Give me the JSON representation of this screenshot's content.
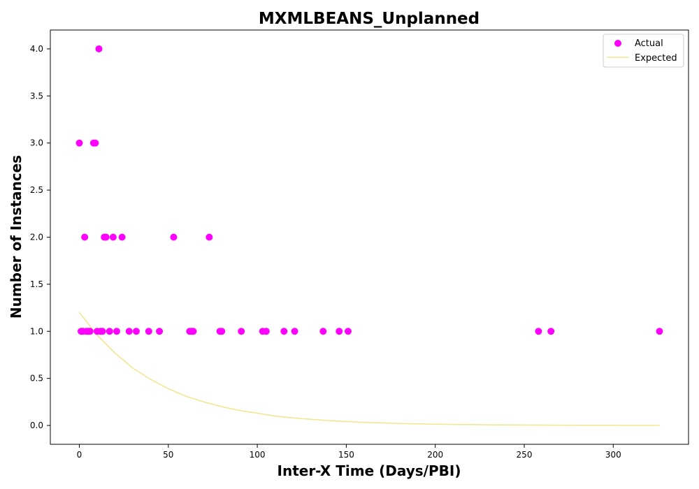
{
  "chart_data": {
    "type": "scatter",
    "title": "MXMLBEANS_Unplanned",
    "xlabel": "Inter-X Time (Days/PBI)",
    "ylabel": "Number of Instances",
    "xlim": [
      -16.3,
      342.3
    ],
    "ylim": [
      -0.2,
      4.2
    ],
    "x_ticks": [
      0,
      50,
      100,
      150,
      200,
      250,
      300
    ],
    "y_ticks": [
      0.0,
      0.5,
      1.0,
      1.5,
      2.0,
      2.5,
      3.0,
      3.5,
      4.0
    ],
    "x_tick_labels": [
      "0",
      "50",
      "100",
      "150",
      "200",
      "250",
      "300"
    ],
    "y_tick_labels": [
      "0.0",
      "0.5",
      "1.0",
      "1.5",
      "2.0",
      "2.5",
      "3.0",
      "3.5",
      "4.0"
    ],
    "grid": false,
    "legend_position": "top-right",
    "series": [
      {
        "name": "Actual",
        "kind": "scatter",
        "color": "#ff00ff",
        "points": [
          [
            0,
            3
          ],
          [
            1,
            1
          ],
          [
            2,
            1
          ],
          [
            3,
            2
          ],
          [
            4,
            1
          ],
          [
            5,
            1
          ],
          [
            6,
            1
          ],
          [
            8,
            3
          ],
          [
            9,
            3
          ],
          [
            10,
            1
          ],
          [
            11,
            4
          ],
          [
            12,
            1
          ],
          [
            13,
            1
          ],
          [
            14,
            2
          ],
          [
            15,
            2
          ],
          [
            17,
            1
          ],
          [
            19,
            2
          ],
          [
            21,
            1
          ],
          [
            24,
            2
          ],
          [
            28,
            1
          ],
          [
            32,
            1
          ],
          [
            39,
            1
          ],
          [
            45,
            1
          ],
          [
            53,
            2
          ],
          [
            62,
            1
          ],
          [
            63,
            1
          ],
          [
            64,
            1
          ],
          [
            73,
            2
          ],
          [
            79,
            1
          ],
          [
            80,
            1
          ],
          [
            91,
            1
          ],
          [
            103,
            1
          ],
          [
            105,
            1
          ],
          [
            115,
            1
          ],
          [
            121,
            1
          ],
          [
            137,
            1
          ],
          [
            146,
            1
          ],
          [
            151,
            1
          ],
          [
            258,
            1
          ],
          [
            265,
            1
          ],
          [
            326,
            1
          ]
        ]
      },
      {
        "name": "Expected",
        "kind": "line",
        "color": "#f0e68c",
        "x": [
          0,
          10,
          20,
          30,
          40,
          50,
          60,
          70,
          80,
          90,
          100,
          110,
          120,
          130,
          140,
          150,
          160,
          170,
          180,
          190,
          200,
          210,
          220,
          230,
          240,
          250,
          260,
          270,
          280,
          290,
          300,
          310,
          320,
          326
        ],
        "y": [
          1.2,
          0.96,
          0.77,
          0.61,
          0.49,
          0.39,
          0.31,
          0.25,
          0.2,
          0.16,
          0.13,
          0.1,
          0.08,
          0.065,
          0.052,
          0.042,
          0.033,
          0.027,
          0.021,
          0.017,
          0.014,
          0.011,
          0.009,
          0.007,
          0.006,
          0.005,
          0.004,
          0.003,
          0.0025,
          0.002,
          0.0016,
          0.0013,
          0.001,
          0.001
        ]
      }
    ]
  }
}
